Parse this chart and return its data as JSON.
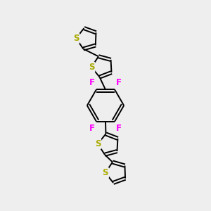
{
  "bg_color": "#eeeeee",
  "bond_color": "#000000",
  "S_color": "#aaaa00",
  "F_color": "#ff00ff",
  "bond_width": 1.4,
  "figsize": [
    3.0,
    3.0
  ],
  "dpi": 100,
  "xlim": [
    0,
    10
  ],
  "ylim": [
    0,
    10
  ]
}
